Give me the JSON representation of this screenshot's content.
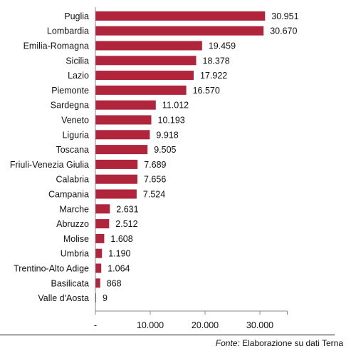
{
  "chart_data": {
    "type": "bar",
    "orientation": "horizontal",
    "categories": [
      "Puglia",
      "Lombardia",
      "Emilia-Romagna",
      "Sicilia",
      "Lazio",
      "Piemonte",
      "Sardegna",
      "Veneto",
      "Liguria",
      "Toscana",
      "Friuli-Venezia Giulia",
      "Calabria",
      "Campania",
      "Marche",
      "Abruzzo",
      "Molise",
      "Umbria",
      "Trentino-Alto Adige",
      "Basilicata",
      "Valle d'Aosta"
    ],
    "values": [
      30951,
      30670,
      19459,
      18378,
      17922,
      16570,
      11012,
      10193,
      9918,
      9505,
      7689,
      7656,
      7524,
      2631,
      2512,
      1608,
      1190,
      1064,
      868,
      9
    ],
    "value_labels": [
      "30.951",
      "30.670",
      "19.459",
      "18.378",
      "17.922",
      "16.570",
      "11.012",
      "10.193",
      "9.918",
      "9.505",
      "7.689",
      "7.656",
      "7.524",
      "2.631",
      "2.512",
      "1.608",
      "1.190",
      "1.064",
      "868",
      "9"
    ],
    "xlim": [
      0,
      35000
    ],
    "x_ticks": [
      0,
      10000,
      20000,
      30000
    ],
    "x_tick_labels": [
      "-",
      "10.000",
      "20.000",
      "30.000"
    ],
    "bar_color": "#b0243c",
    "grid": false,
    "legend": "none"
  },
  "footer": {
    "source_prefix": "Fonte:",
    "source_text": " Elaborazione su dati Terna"
  }
}
